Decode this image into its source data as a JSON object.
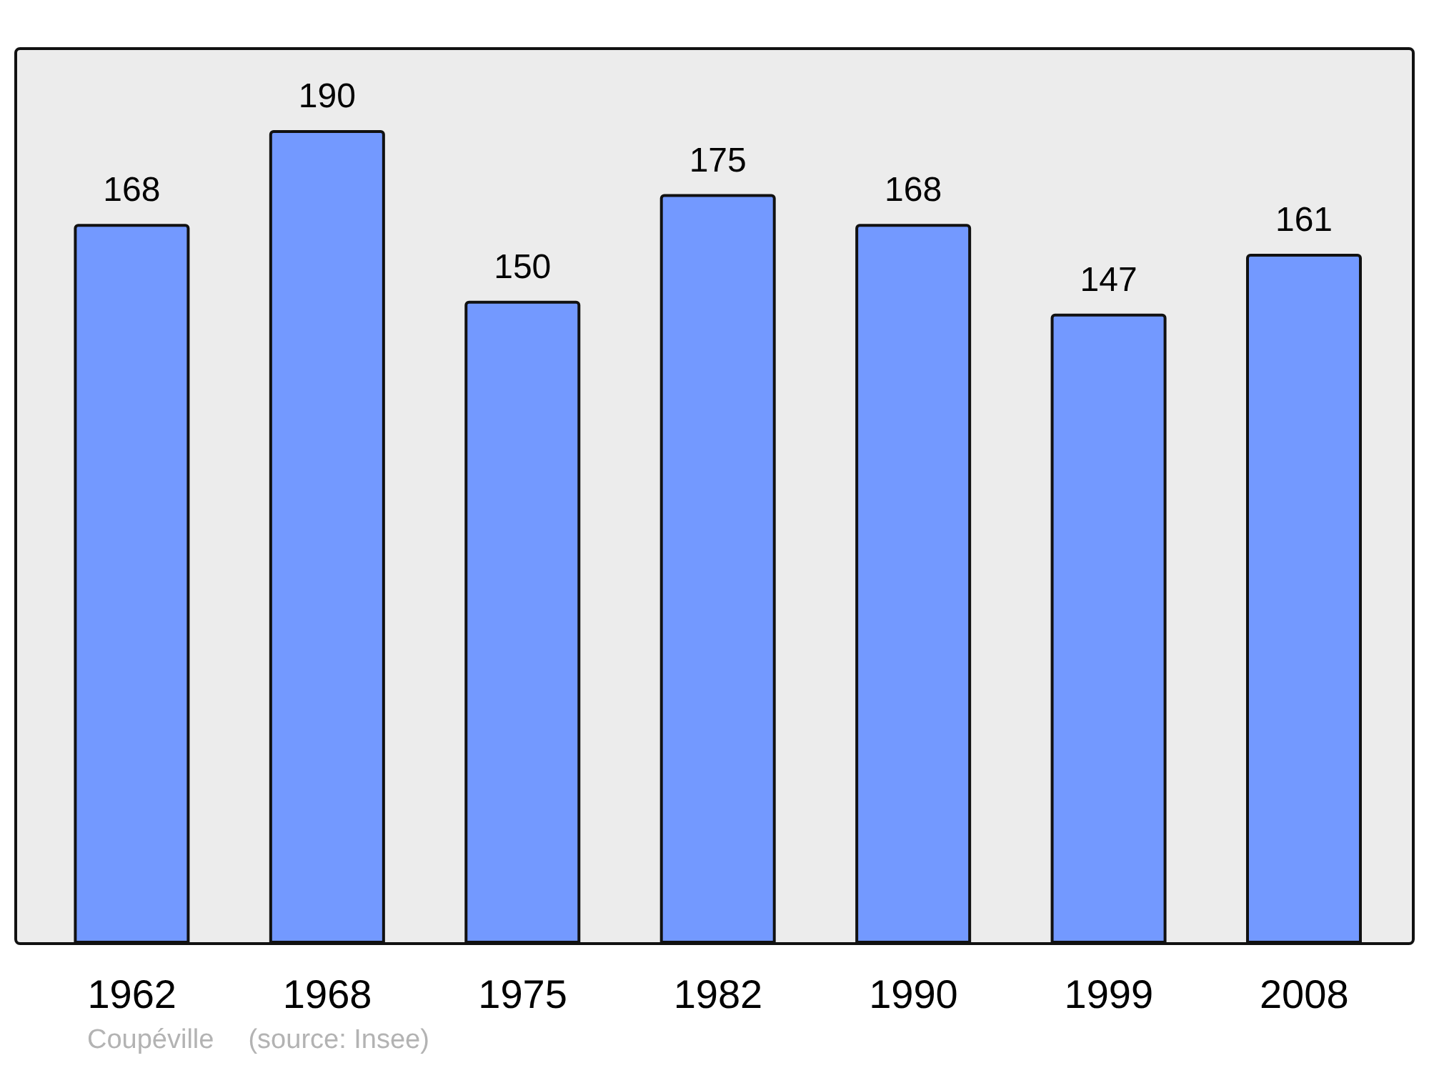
{
  "chart_data": {
    "type": "bar",
    "categories": [
      "1962",
      "1968",
      "1975",
      "1982",
      "1990",
      "1999",
      "2008"
    ],
    "values": [
      168,
      190,
      150,
      175,
      168,
      147,
      161
    ],
    "color": "#7399ff",
    "data_labels": true,
    "annotations": [
      "Coupéville",
      "(source: Insee)"
    ]
  }
}
